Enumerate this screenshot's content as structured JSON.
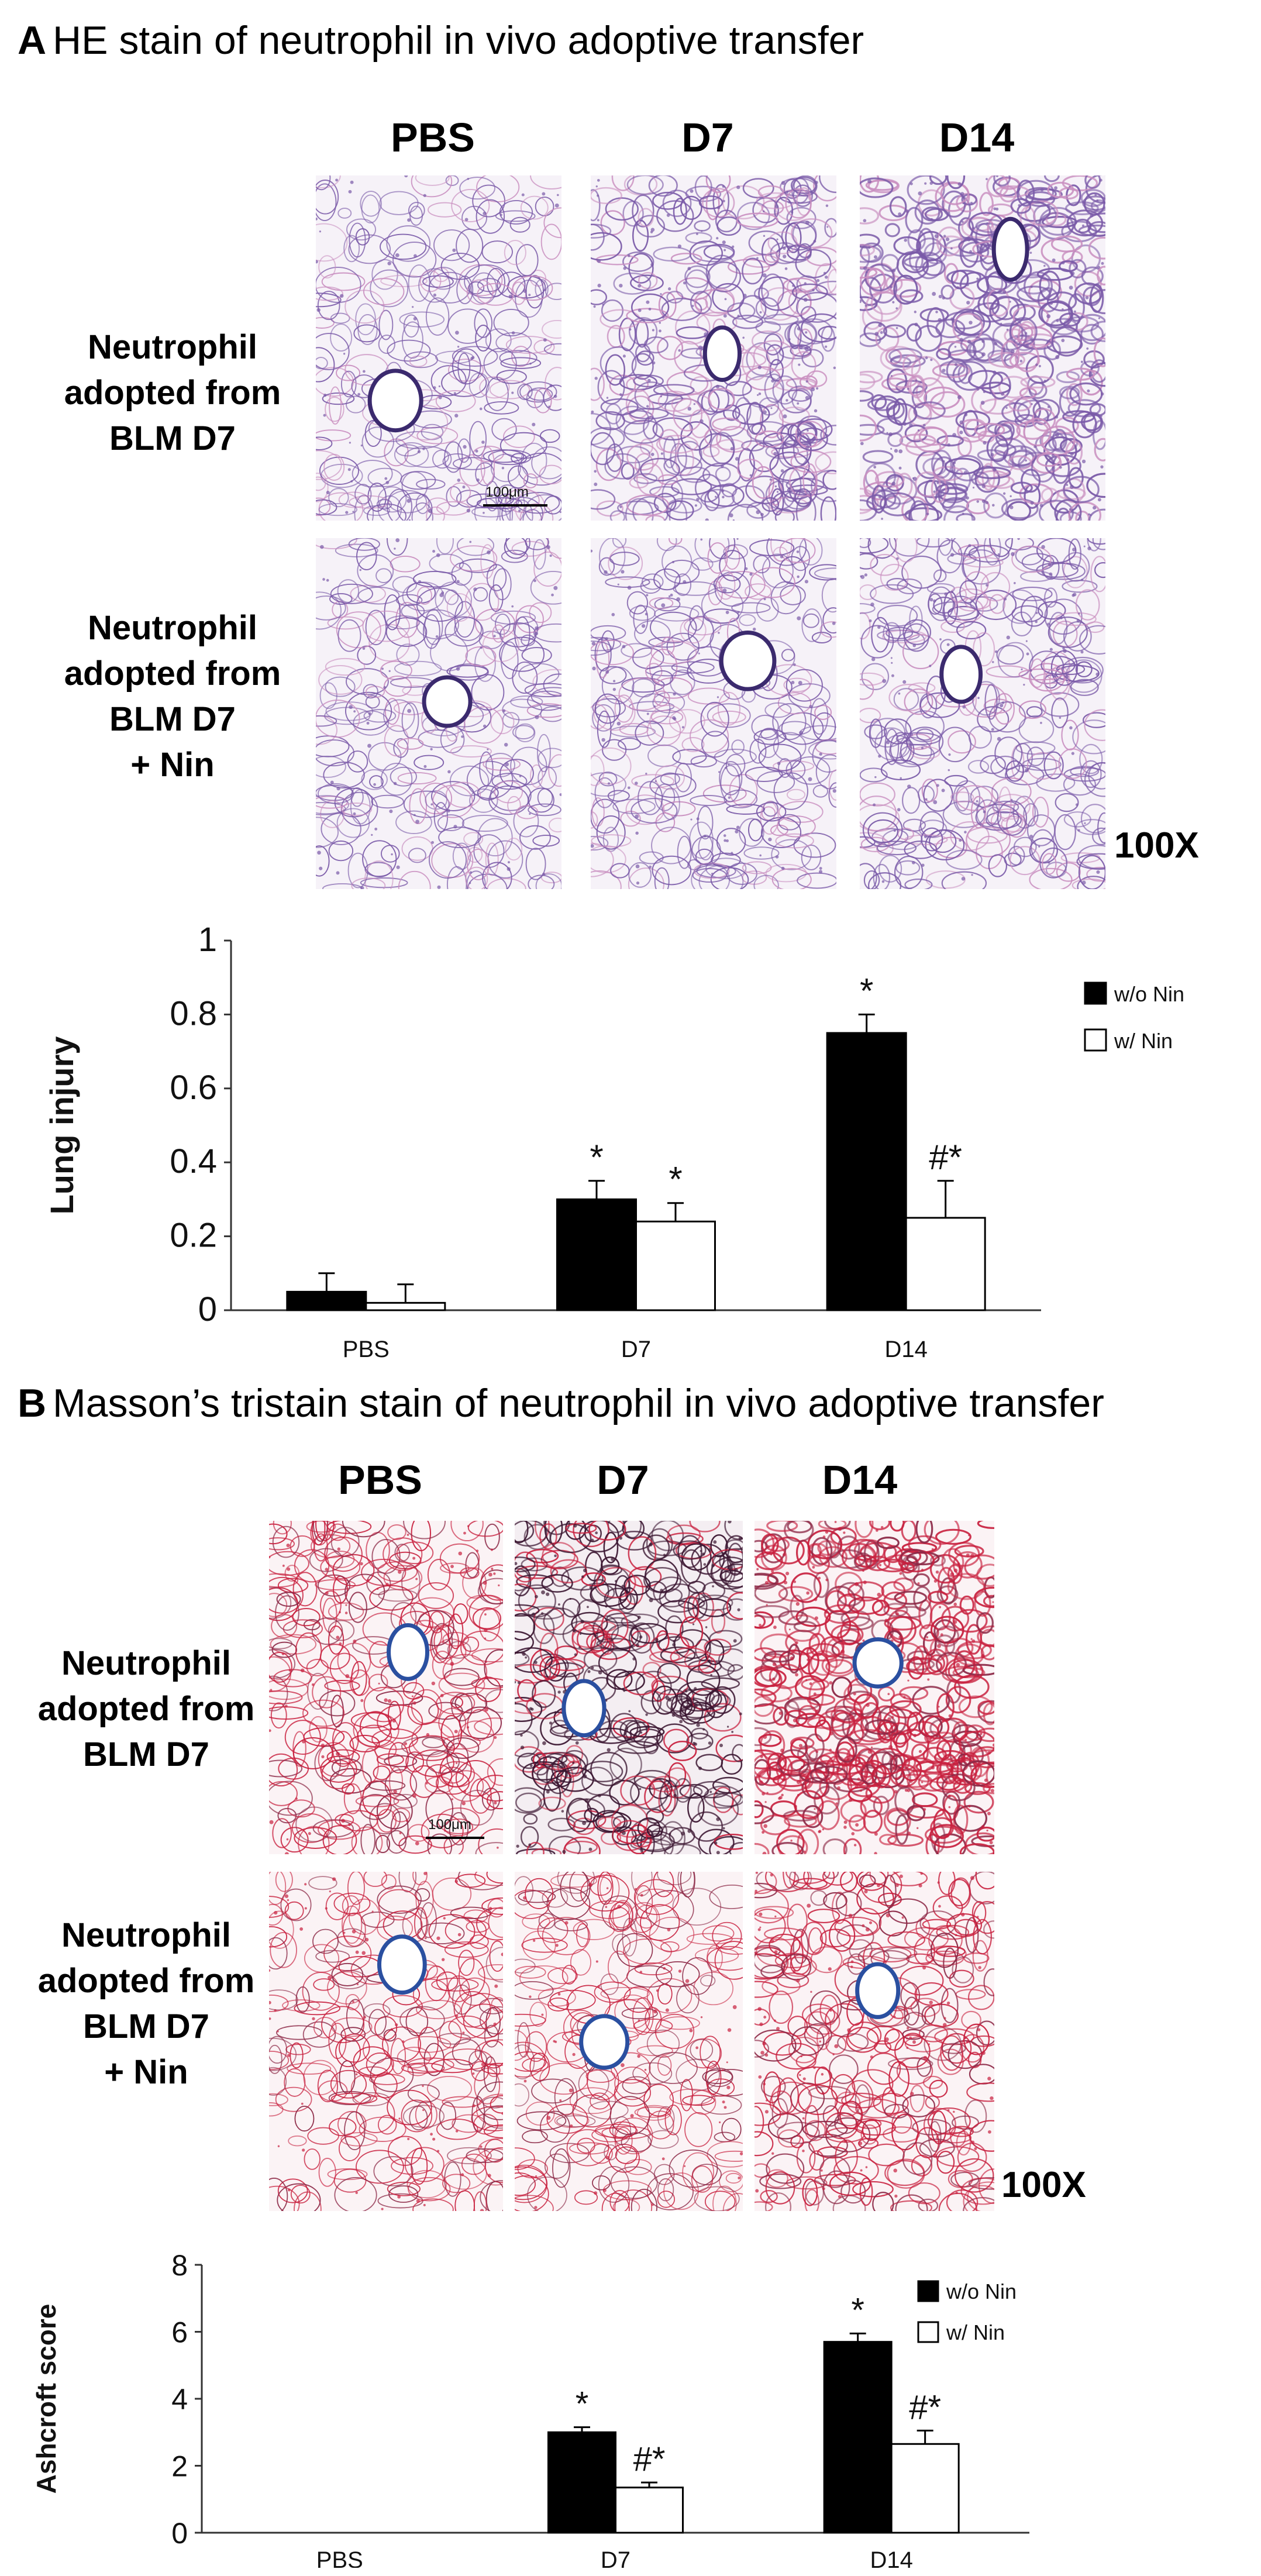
{
  "panel_a": {
    "letter": "A",
    "title": "HE stain of neutrophil in vivo adoptive transfer",
    "columns": [
      "PBS",
      "D7",
      "D14"
    ],
    "row1_label": [
      "Neutrophil",
      "adopted from",
      "BLM D7"
    ],
    "row2_label": [
      "Neutrophil",
      "adopted from",
      "BLM D7",
      "+ Nin"
    ],
    "magnification": "100X",
    "scale_bar": "100μm"
  },
  "panel_b": {
    "letter": "B",
    "title": "Masson’s tristain stain of neutrophil in vivo adoptive transfer",
    "columns": [
      "PBS",
      "D7",
      "D14"
    ],
    "row1_label": [
      "Neutrophil",
      "adopted from",
      "BLM D7"
    ],
    "row2_label": [
      "Neutrophil",
      "adopted from",
      "BLM D7",
      "+ Nin"
    ],
    "magnification": "100X",
    "scale_bar": "100μm"
  },
  "colors": {
    "he_purple": "#7a5aa8",
    "he_pink": "#c98fc0",
    "masson_red": "#c8203e",
    "masson_blue": "#2a4fa0",
    "bar_dark": "#000000",
    "bar_light": "#ffffff"
  },
  "chart_data": [
    {
      "type": "bar",
      "categories": [
        "PBS",
        "D7",
        "D14"
      ],
      "ylabel": "Lung injury",
      "ylim": [
        0,
        1
      ],
      "yticks": [
        0,
        0.2,
        0.4,
        0.6,
        0.8,
        1
      ],
      "ytick_labels": [
        "0",
        "0.2",
        "0.4",
        "0.6",
        "0.8",
        "1"
      ],
      "legend_position": "top-right",
      "series": [
        {
          "name": "w/o Nin",
          "fill": "#000000",
          "values": [
            0.05,
            0.3,
            0.75
          ],
          "errors": [
            0.05,
            0.05,
            0.05
          ],
          "annotations": [
            "",
            "*",
            "*"
          ]
        },
        {
          "name": "w/ Nin",
          "fill": "#ffffff",
          "values": [
            0.02,
            0.24,
            0.25
          ],
          "errors": [
            0.05,
            0.05,
            0.1
          ],
          "annotations": [
            "",
            "*",
            "#*"
          ]
        }
      ]
    },
    {
      "type": "bar",
      "categories": [
        "PBS",
        "D7",
        "D14"
      ],
      "ylabel": "Ashcroft score",
      "ylim": [
        0,
        8
      ],
      "yticks": [
        0,
        2,
        4,
        6,
        8
      ],
      "ytick_labels": [
        "0",
        "2",
        "4",
        "6",
        "8"
      ],
      "legend_position": "top-right",
      "series": [
        {
          "name": "w/o Nin",
          "fill": "#000000",
          "values": [
            0,
            3.0,
            5.7
          ],
          "errors": [
            0,
            0.15,
            0.25
          ],
          "annotations": [
            "",
            "*",
            "*"
          ]
        },
        {
          "name": "w/ Nin",
          "fill": "#ffffff",
          "values": [
            0,
            1.35,
            2.65
          ],
          "errors": [
            0,
            0.15,
            0.4
          ],
          "annotations": [
            "",
            "#*",
            "#*"
          ]
        }
      ]
    }
  ]
}
